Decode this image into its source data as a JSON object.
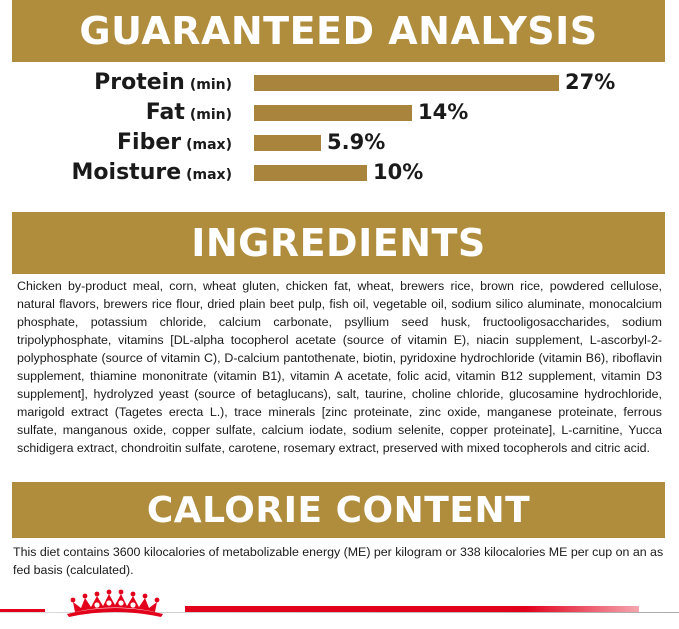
{
  "guaranteed_analysis": {
    "title": "GUARANTEED ANALYSIS",
    "rows": [
      {
        "name": "Protein",
        "qualifier": "(min)",
        "value": "27%",
        "percent": 27
      },
      {
        "name": "Fat",
        "qualifier": "(min)",
        "value": "14%",
        "percent": 14
      },
      {
        "name": "Fiber",
        "qualifier": "(max)",
        "value": "5.9%",
        "percent": 5.9
      },
      {
        "name": "Moisture",
        "qualifier": "(max)",
        "value": "10%",
        "percent": 10
      }
    ]
  },
  "ingredients": {
    "title": "INGREDIENTS",
    "text": "Chicken by-product meal, corn, wheat gluten, chicken fat, wheat, brewers rice, brown rice, powdered cellulose, natural flavors, brewers rice flour, dried plain beet pulp, fish oil, vegetable oil, sodium silico aluminate, monocalcium phosphate, potassium chloride, calcium carbonate, psyllium seed husk, fructooligosaccharides, sodium tripolyphosphate, vitamins [DL-alpha tocopherol acetate (source of vitamin E), niacin supplement, L-ascorbyl-2-polyphosphate (source of vitamin C), D-calcium pantothenate, biotin, pyridoxine hydrochloride (vitamin B6), riboflavin supplement, thiamine mononitrate (vitamin B1), vitamin A acetate, folic acid, vitamin B12 supplement, vitamin D3 supplement], hydrolyzed yeast (source of betaglucans), salt, taurine, choline chloride, glucosamine hydrochloride, marigold extract (Tagetes erecta L.), trace minerals [zinc proteinate, zinc oxide, manganese proteinate, ferrous sulfate, manganous oxide, copper sulfate, calcium iodate, sodium selenite, copper proteinate], L-carnitine, Yucca schidigera extract, chondroitin sulfate, carotene, rosemary extract, preserved with mixed tocopherols and citric acid."
  },
  "calorie_content": {
    "title": "CALORIE CONTENT",
    "text": "This diet contains 3600 kilocalories of metabolizable energy (ME) per kilogram or 338 kilocalories ME per cup on an as fed basis (calculated)."
  },
  "colors": {
    "banner": "#b08d3c",
    "bar": "#a8843c",
    "brand_red": "#e2001a"
  },
  "footer": {
    "logo_icon": "crown-logo-icon"
  }
}
